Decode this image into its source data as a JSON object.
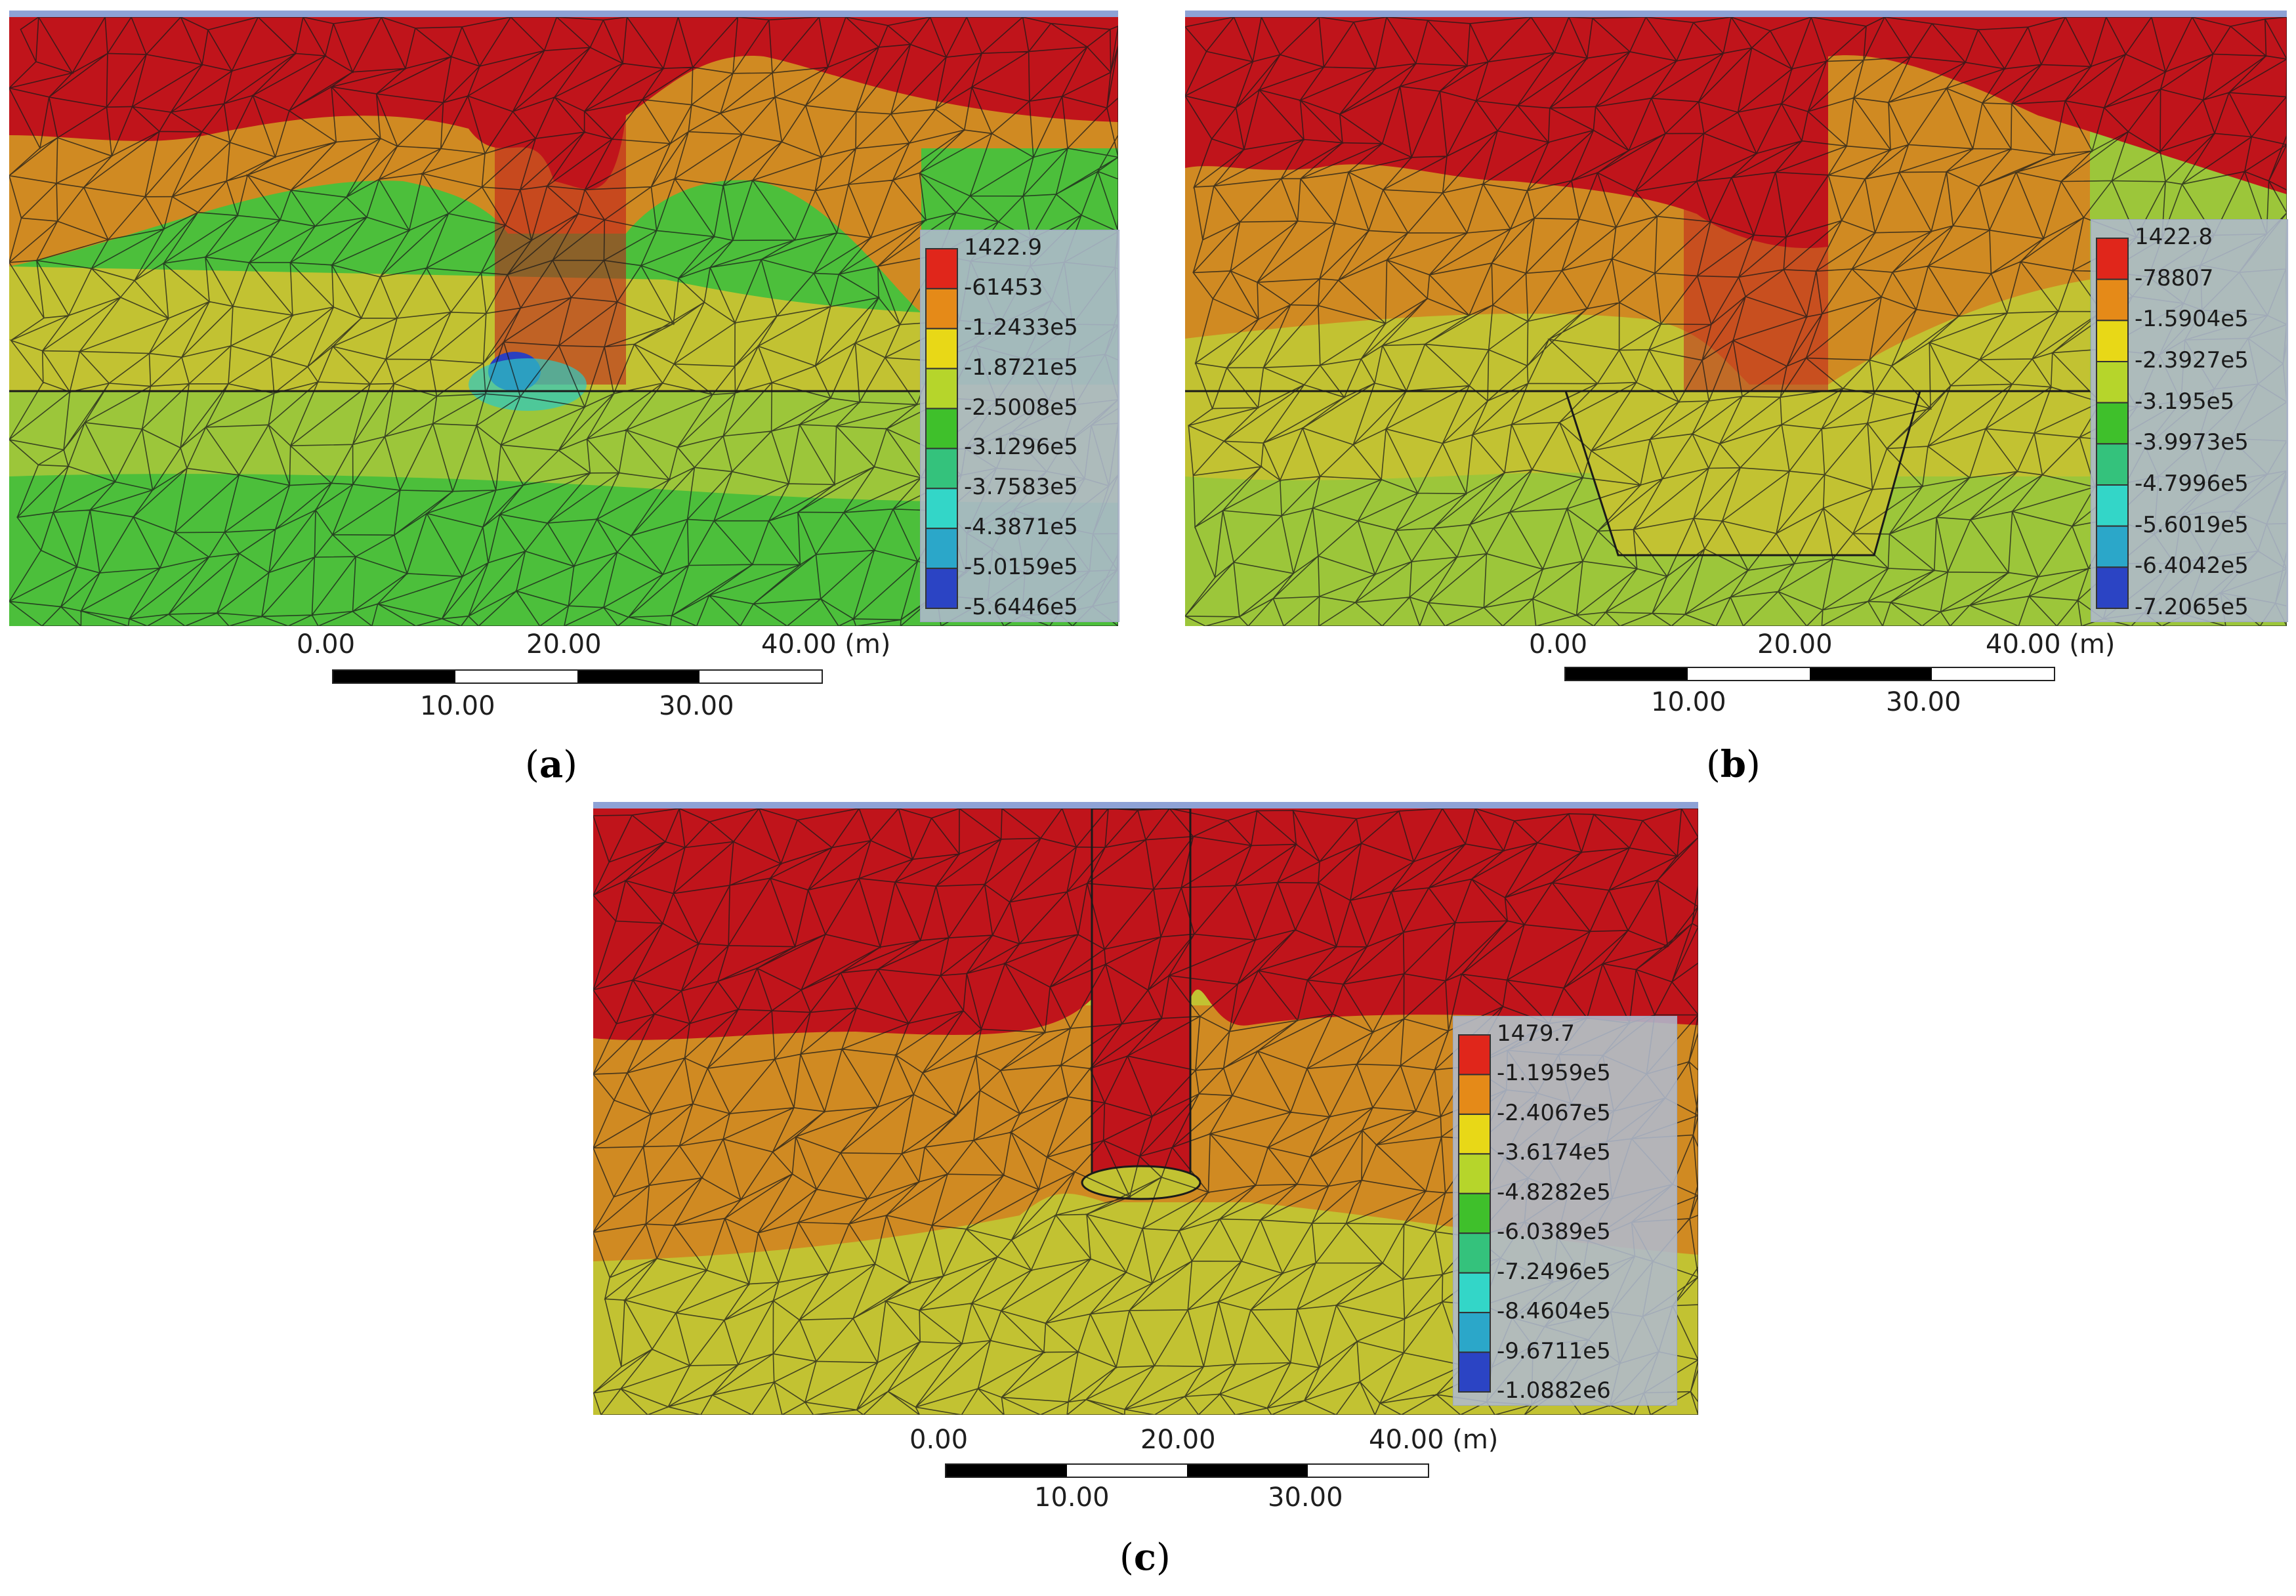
{
  "panels": [
    {
      "id": "a",
      "caption_letter": "a",
      "legend": [
        "1422.9",
        "-61453",
        "-1.2433e5",
        "-1.8721e5",
        "-2.5008e5",
        "-3.1296e5",
        "-3.7583e5",
        "-4.3871e5",
        "-5.0159e5",
        "-5.6446e5"
      ],
      "scale": {
        "ticks_top": [
          "0.00",
          "20.00",
          "40.00 (m)"
        ],
        "ticks_bottom": [
          "10.00",
          "30.00"
        ]
      }
    },
    {
      "id": "b",
      "caption_letter": "b",
      "legend": [
        "1422.8",
        "-78807",
        "-1.5904e5",
        "-2.3927e5",
        "-3.195e5",
        "-3.9973e5",
        "-4.7996e5",
        "-5.6019e5",
        "-6.4042e5",
        "-7.2065e5"
      ],
      "scale": {
        "ticks_top": [
          "0.00",
          "20.00",
          "40.00 (m)"
        ],
        "ticks_bottom": [
          "10.00",
          "30.00"
        ]
      }
    },
    {
      "id": "c",
      "caption_letter": "c",
      "legend": [
        "1479.7",
        "-1.1959e5",
        "-2.4067e5",
        "-3.6174e5",
        "-4.8282e5",
        "-6.0389e5",
        "-7.2496e5",
        "-8.4604e5",
        "-9.6711e5",
        "-1.0882e6"
      ],
      "scale": {
        "ticks_top": [
          "0.00",
          "20.00",
          "40.00 (m)"
        ],
        "ticks_bottom": [
          "10.00",
          "30.00"
        ]
      }
    }
  ],
  "colors": {
    "band_1": "#c0141b",
    "band_2": "#d08a22",
    "band_3": "#c2c232",
    "band_4": "#9cc63a",
    "band_5": "#4cbf3b",
    "band_6": "#2fb98a",
    "band_7": "#2ec9c2",
    "band_8": "#2b9fc8",
    "band_9": "#2b3fc0",
    "mesh_line": "#1a1a1a"
  },
  "legend_swatches": [
    "#e0261b",
    "#e58a18",
    "#e8d817",
    "#b6d52b",
    "#3fc02b",
    "#34c27c",
    "#33d6c8",
    "#2ba7c9",
    "#2b44c4"
  ]
}
